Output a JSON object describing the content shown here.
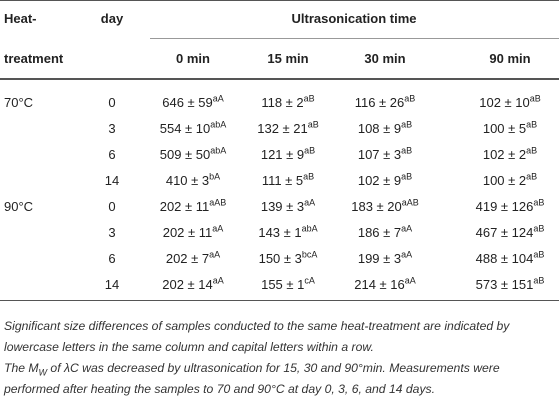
{
  "table": {
    "header": {
      "heat": "Heat-",
      "treatment": "treatment",
      "day": "day",
      "group": "Ultrasonication time",
      "columns": [
        "0 min",
        "15 min",
        "30 min",
        "90 min"
      ]
    },
    "rows": [
      {
        "heat": "70°C",
        "day": "0",
        "cells": [
          {
            "text": "646 ± 59",
            "sup": "aA"
          },
          {
            "text": "118 ± 2",
            "sup": "aB"
          },
          {
            "text": "116 ± 26",
            "sup": "aB"
          },
          {
            "text": "102 ± 10",
            "sup": "aB"
          }
        ]
      },
      {
        "heat": null,
        "day": "3",
        "cells": [
          {
            "text": "554 ± 10",
            "sup": "abA"
          },
          {
            "text": "132 ± 21",
            "sup": "aB"
          },
          {
            "text": "108 ± 9",
            "sup": "aB"
          },
          {
            "text": "100 ± 5",
            "sup": "aB"
          }
        ]
      },
      {
        "heat": null,
        "day": "6",
        "cells": [
          {
            "text": "509 ± 50",
            "sup": "abA"
          },
          {
            "text": "121 ± 9",
            "sup": "aB"
          },
          {
            "text": "107 ± 3",
            "sup": "aB"
          },
          {
            "text": "102 ± 2",
            "sup": "aB"
          }
        ]
      },
      {
        "heat": null,
        "day": "14",
        "cells": [
          {
            "text": "410 ± 3",
            "sup": "bA"
          },
          {
            "text": "111 ± 5",
            "sup": "aB"
          },
          {
            "text": "102 ± 9",
            "sup": "aB"
          },
          {
            "text": "100 ± 2",
            "sup": "aB"
          }
        ]
      },
      {
        "heat": "90°C",
        "day": "0",
        "cells": [
          {
            "text": "202 ± 11",
            "sup": "aAB"
          },
          {
            "text": "139 ± 3",
            "sup": "aA"
          },
          {
            "text": "183 ± 20",
            "sup": "aAB"
          },
          {
            "text": "419 ± 126",
            "sup": "aB"
          }
        ]
      },
      {
        "heat": null,
        "day": "3",
        "cells": [
          {
            "text": "202 ± 11",
            "sup": "aA"
          },
          {
            "text": "143 ± 1",
            "sup": "abA"
          },
          {
            "text": "186 ± 7",
            "sup": "aA"
          },
          {
            "text": "467 ± 124",
            "sup": "aB"
          }
        ]
      },
      {
        "heat": null,
        "day": "6",
        "cells": [
          {
            "text": "202 ± 7",
            "sup": "aA"
          },
          {
            "text": "150 ± 3",
            "sup": "bcA"
          },
          {
            "text": "199 ± 3",
            "sup": "aA"
          },
          {
            "text": "488 ± 104",
            "sup": "aB"
          }
        ]
      },
      {
        "heat": null,
        "day": "14",
        "cells": [
          {
            "text": "202 ± 14",
            "sup": "aA"
          },
          {
            "text": "155 ± 1",
            "sup": "cA"
          },
          {
            "text": "214 ± 16",
            "sup": "aA"
          },
          {
            "text": "573 ± 151",
            "sup": "aB"
          }
        ]
      }
    ],
    "notes": {
      "first": "Significant size differences of samples conducted to the same heat-treatment are indicated by lowercase letters in the same column and capital letters within a row.",
      "second": {
        "pre": "The M",
        "sub": "W",
        "post": " of λC was decreased by ultrasonication for 15, 30 and 90°min. Measurements were performed after heating the samples to 70 and 90°C at day 0, 3, 6, and 14 days."
      }
    }
  }
}
